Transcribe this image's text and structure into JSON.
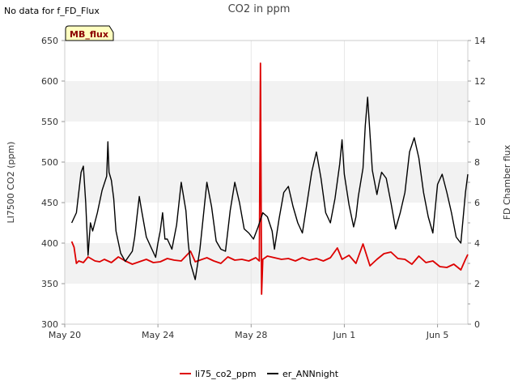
{
  "status_note": "No data for f_FD_Flux",
  "chart_data": {
    "type": "line",
    "title": "CO2 in ppm",
    "badge": "MB_flux",
    "x_ticks": [
      "May 20",
      "May 24",
      "May 28",
      "Jun 1",
      "Jun 5"
    ],
    "x_tick_days": [
      0,
      4,
      8,
      12,
      16
    ],
    "x_range_days": [
      0,
      17.3
    ],
    "left_axis": {
      "label": "LI7500 CO2 (ppm)",
      "ylim": [
        300,
        650
      ],
      "ticks": [
        300,
        350,
        400,
        450,
        500,
        550,
        600,
        650
      ]
    },
    "right_axis": {
      "label": "FD Chamber flux",
      "ylim": [
        0,
        14
      ],
      "ticks": [
        0,
        2,
        4,
        6,
        8,
        10,
        12,
        14
      ]
    },
    "grid_bands": true,
    "legend_position": "bottom",
    "series": [
      {
        "name": "li75_co2_ppm",
        "axis": "left",
        "color": "#dd0000",
        "x": [
          0.3,
          0.4,
          0.5,
          0.6,
          0.8,
          1.0,
          1.3,
          1.5,
          1.7,
          2.0,
          2.3,
          2.6,
          2.9,
          3.2,
          3.5,
          3.8,
          4.1,
          4.4,
          4.7,
          5.0,
          5.4,
          5.6,
          5.8,
          6.1,
          6.4,
          6.7,
          7.0,
          7.3,
          7.6,
          7.9,
          8.2,
          8.35,
          8.4,
          8.45,
          8.5,
          8.7,
          9.0,
          9.3,
          9.6,
          9.9,
          10.2,
          10.5,
          10.8,
          11.1,
          11.4,
          11.7,
          11.9,
          12.2,
          12.5,
          12.8,
          13.1,
          13.4,
          13.7,
          14.0,
          14.3,
          14.6,
          14.9,
          15.2,
          15.5,
          15.8,
          16.1,
          16.4,
          16.7,
          17.0,
          17.2,
          17.3
        ],
        "y": [
          402,
          395,
          375,
          378,
          376,
          383,
          378,
          377,
          380,
          376,
          383,
          378,
          374,
          377,
          380,
          376,
          377,
          381,
          379,
          378,
          390,
          377,
          379,
          382,
          378,
          375,
          383,
          379,
          380,
          378,
          382,
          378,
          622,
          337,
          380,
          384,
          382,
          380,
          381,
          378,
          382,
          379,
          381,
          378,
          382,
          394,
          380,
          385,
          375,
          399,
          372,
          380,
          387,
          389,
          381,
          380,
          374,
          384,
          376,
          378,
          371,
          370,
          374,
          367,
          380,
          386
        ]
      },
      {
        "name": "er_ANNnight",
        "axis": "right",
        "color": "#000000",
        "x": [
          0.3,
          0.5,
          0.7,
          0.8,
          0.9,
          1.0,
          1.1,
          1.2,
          1.4,
          1.6,
          1.8,
          1.85,
          1.9,
          2.0,
          2.1,
          2.2,
          2.4,
          2.6,
          2.9,
          3.0,
          3.1,
          3.2,
          3.3,
          3.5,
          3.7,
          3.9,
          4.0,
          4.1,
          4.2,
          4.3,
          4.4,
          4.6,
          4.8,
          5.0,
          5.2,
          5.3,
          5.4,
          5.6,
          5.8,
          6.0,
          6.1,
          6.3,
          6.5,
          6.7,
          6.9,
          7.1,
          7.3,
          7.5,
          7.7,
          7.9,
          8.1,
          8.3,
          8.5,
          8.7,
          8.9,
          9.0,
          9.2,
          9.4,
          9.6,
          9.8,
          10.0,
          10.2,
          10.4,
          10.6,
          10.8,
          11.0,
          11.2,
          11.4,
          11.6,
          11.8,
          11.9,
          12.0,
          12.2,
          12.4,
          12.5,
          12.6,
          12.7,
          12.8,
          12.9,
          13.0,
          13.2,
          13.4,
          13.5,
          13.6,
          13.8,
          14.0,
          14.2,
          14.4,
          14.6,
          14.8,
          15.0,
          15.2,
          15.4,
          15.6,
          15.8,
          16.0,
          16.2,
          16.4,
          16.6,
          16.8,
          17.0,
          17.2,
          17.3
        ],
        "y": [
          5.0,
          5.5,
          7.5,
          7.8,
          6.0,
          3.4,
          5.0,
          4.6,
          5.5,
          6.6,
          7.3,
          9.0,
          7.5,
          7.1,
          6.2,
          4.6,
          3.5,
          3.1,
          3.6,
          4.3,
          5.3,
          6.3,
          5.6,
          4.3,
          3.8,
          3.3,
          4.0,
          4.6,
          5.5,
          4.2,
          4.2,
          3.7,
          4.9,
          7.0,
          5.6,
          4.0,
          3.0,
          2.2,
          3.7,
          5.9,
          7.0,
          5.8,
          4.1,
          3.7,
          3.6,
          5.6,
          7.0,
          6.0,
          4.7,
          4.5,
          4.2,
          4.8,
          5.5,
          5.3,
          4.6,
          3.7,
          5.2,
          6.5,
          6.8,
          5.8,
          5.0,
          4.5,
          6.0,
          7.5,
          8.5,
          7.2,
          5.5,
          5.0,
          6.2,
          7.9,
          9.1,
          7.4,
          5.9,
          4.8,
          5.3,
          6.3,
          7.0,
          7.7,
          9.8,
          11.2,
          7.6,
          6.4,
          7.0,
          7.5,
          7.2,
          6.0,
          4.7,
          5.5,
          6.5,
          8.5,
          9.2,
          8.2,
          6.5,
          5.3,
          4.5,
          6.9,
          7.4,
          6.5,
          5.5,
          4.3,
          4.0,
          6.5,
          7.4
        ]
      }
    ]
  }
}
